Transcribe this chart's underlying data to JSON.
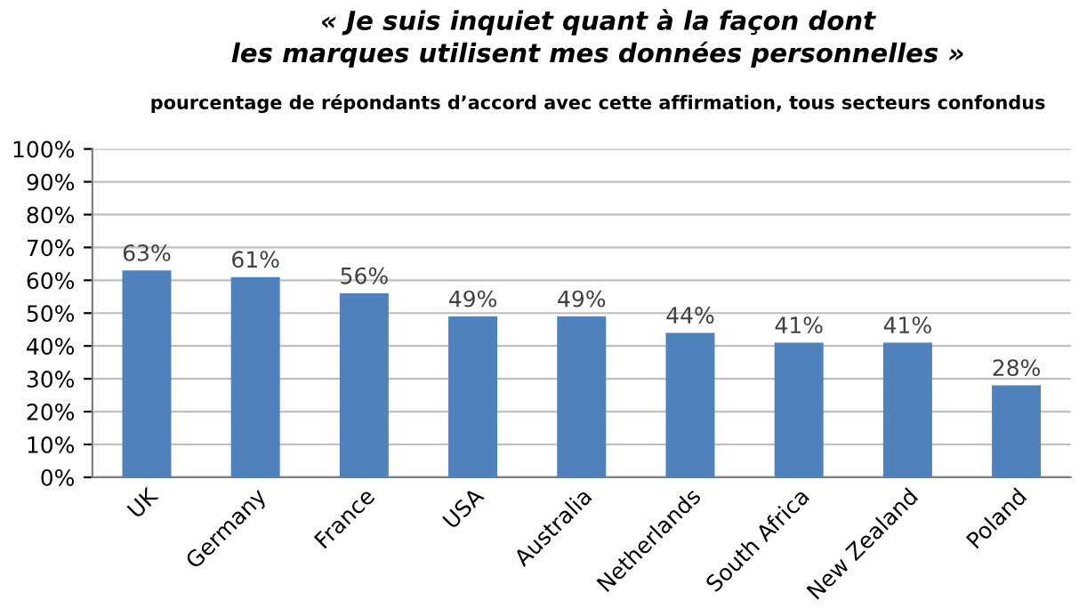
{
  "chart_data": {
    "type": "bar",
    "title": "« Je suis inquiet quant à la façon dont\nles marques utilisent mes données personnelles »",
    "subtitle": "pourcentage de répondants d’accord avec cette affirmation, tous secteurs confondus",
    "categories": [
      "UK",
      "Germany",
      "France",
      "USA",
      "Australia",
      "Netherlands",
      "South Africa",
      "New Zealand",
      "Poland"
    ],
    "values": [
      63,
      61,
      56,
      49,
      49,
      44,
      41,
      41,
      28
    ],
    "value_labels": [
      "63%",
      "61%",
      "56%",
      "49%",
      "49%",
      "44%",
      "41%",
      "41%",
      "28%"
    ],
    "color": "#4f81bd",
    "ylim": [
      0,
      100
    ],
    "yticks": [
      {
        "value": 0,
        "label": "0%"
      },
      {
        "value": 10,
        "label": "10%"
      },
      {
        "value": 20,
        "label": "20%"
      },
      {
        "value": 30,
        "label": "30%"
      },
      {
        "value": 40,
        "label": "40%"
      },
      {
        "value": 50,
        "label": "50%"
      },
      {
        "value": 60,
        "label": "60%"
      },
      {
        "value": 70,
        "label": "70%"
      },
      {
        "value": 80,
        "label": "80%"
      },
      {
        "value": 90,
        "label": "90%"
      },
      {
        "value": 100,
        "label": "100%"
      }
    ],
    "grid": "y"
  }
}
